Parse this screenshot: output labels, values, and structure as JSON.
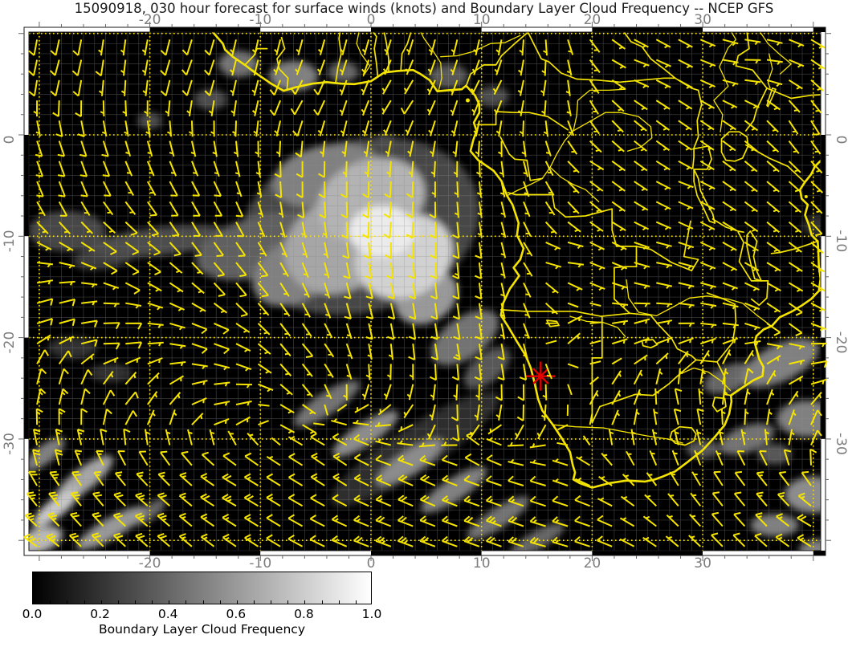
{
  "figure": {
    "title": "15090918, 030 hour forecast for surface winds (knots) and Boundary Layer Cloud Frequency -- NCEP GFS"
  },
  "map": {
    "extent": {
      "lon_min": -30.9,
      "lon_max": 40.7,
      "lat_min": -41.0,
      "lat_max": 10.1
    },
    "axes": {
      "top": [
        "-20",
        "-10",
        "0",
        "10",
        "20",
        "30"
      ],
      "bottom": [
        "-20",
        "-10",
        "0",
        "10",
        "20",
        "30"
      ],
      "left": [
        "0",
        "-10",
        "-20",
        "-30"
      ],
      "right": [
        "0",
        "-10",
        "-20",
        "-30"
      ]
    },
    "grid": {
      "major_deg": 10,
      "fine_deg": 1,
      "tick_deg": 2
    },
    "marker": {
      "shape": "asterisk",
      "lon": 15.35,
      "lat": -23.8,
      "color": "#e60000"
    },
    "colors": {
      "background": "#000000",
      "graticule": "#8c8c8c",
      "grid_major": "#ffe400",
      "geo": "#f5e400",
      "barb": "#f5e400",
      "frame_light": "#ffffff",
      "frame_dark": "#000000",
      "axis_text": "#7d7d7d",
      "title_text": "#1a1a1a"
    }
  },
  "colorbar": {
    "min": 0.0,
    "max": 1.0,
    "tick_labels": [
      "0.0",
      "0.2",
      "0.4",
      "0.6",
      "0.8",
      "1.0"
    ],
    "minor_tick_step": 0.05,
    "label": "Boundary Layer Cloud Frequency",
    "colors": [
      "#000000",
      "#ffffff"
    ]
  },
  "chart_data": {
    "type": "heatmap",
    "title": "15090918, 030 hour forecast for surface winds (knots) and Boundary Layer Cloud Frequency -- NCEP GFS",
    "value_field": "Boundary Layer Cloud Frequency",
    "value_range": [
      0,
      1
    ],
    "lon_range": [
      -30.9,
      40.7
    ],
    "lat_range": [
      -41.0,
      10.1
    ],
    "cloud_blobs": [
      [
        -1,
        -9,
        11,
        8.5,
        -15,
        0.28
      ],
      [
        -10,
        -11,
        6,
        3,
        -15,
        0.38
      ],
      [
        -4,
        -4,
        5,
        3,
        -12,
        0.5
      ],
      [
        0,
        -6.5,
        5,
        4,
        -20,
        0.7
      ],
      [
        -3,
        -11,
        5,
        4.5,
        -25,
        0.65
      ],
      [
        3,
        -12,
        4.5,
        4,
        -25,
        0.82
      ],
      [
        1,
        -9.5,
        3,
        2.5,
        0,
        0.92
      ],
      [
        -7,
        -13.5,
        4,
        3,
        -30,
        0.5
      ],
      [
        5,
        -16,
        3,
        2.5,
        -30,
        0.6
      ],
      [
        8.5,
        -20,
        3.5,
        2,
        -35,
        0.45
      ],
      [
        10.5,
        -23,
        2.5,
        1.4,
        -40,
        0.35
      ],
      [
        -19,
        -10.5,
        6.5,
        1.4,
        -6,
        0.3
      ],
      [
        -27.5,
        -9.5,
        3.5,
        2,
        0,
        0.28
      ],
      [
        -24,
        -12,
        3,
        1.2,
        -10,
        0.24
      ],
      [
        -27,
        -21,
        2.2,
        1.1,
        0,
        0.2
      ],
      [
        -23.5,
        -23.5,
        1.9,
        0.9,
        0,
        0.2
      ],
      [
        4,
        -31,
        9,
        2.2,
        -33,
        0.18
      ],
      [
        -4,
        -26.5,
        3.5,
        1.1,
        -33,
        0.45
      ],
      [
        -0.5,
        -29.5,
        3.5,
        1.1,
        -33,
        0.55
      ],
      [
        3.5,
        -32.3,
        3.5,
        1.1,
        -33,
        0.55
      ],
      [
        7.5,
        -35,
        3.5,
        1.1,
        -33,
        0.5
      ],
      [
        11.5,
        -37.8,
        3.3,
        1,
        -33,
        0.45
      ],
      [
        15,
        -40,
        2.8,
        0.9,
        -30,
        0.4
      ],
      [
        -29.5,
        -31.5,
        2.2,
        0.9,
        -38,
        0.5
      ],
      [
        -26,
        -34,
        3.3,
        1.1,
        -38,
        0.65
      ],
      [
        -28.5,
        -36.8,
        2.6,
        0.9,
        -38,
        0.78
      ],
      [
        -23.5,
        -38.8,
        3.6,
        1,
        -30,
        0.6
      ],
      [
        -30,
        -40,
        2.2,
        1.2,
        -20,
        0.72
      ],
      [
        -20,
        -37.2,
        1.8,
        0.7,
        -38,
        0.4
      ],
      [
        -12,
        7,
        1.8,
        1.3,
        0,
        0.45
      ],
      [
        -7,
        5.8,
        2.2,
        1.5,
        0,
        0.5
      ],
      [
        -2.5,
        6.2,
        1.4,
        1,
        0,
        0.4
      ],
      [
        7,
        5.8,
        1.8,
        1.2,
        0,
        0.35
      ],
      [
        11,
        3.8,
        1.5,
        1,
        0,
        0.3
      ],
      [
        -14.5,
        3.5,
        1.5,
        1,
        0,
        0.3
      ],
      [
        -20,
        1.4,
        1.1,
        0.8,
        0,
        0.3
      ],
      [
        1.3,
        -0.6,
        0.9,
        0.7,
        0,
        0.3
      ],
      [
        9.5,
        -18.5,
        1.2,
        0.8,
        0,
        0.3
      ],
      [
        37,
        -22.5,
        3.8,
        1.8,
        -25,
        0.5
      ],
      [
        32.5,
        -24,
        2.5,
        1.3,
        -20,
        0.4
      ],
      [
        34,
        -30,
        2.6,
        1.3,
        -20,
        0.45
      ],
      [
        39.5,
        -28,
        2.8,
        1.8,
        0,
        0.5
      ],
      [
        30,
        -31,
        1.5,
        0.9,
        0,
        0.35
      ],
      [
        36.5,
        -31.5,
        1.5,
        1,
        0,
        0.35
      ],
      [
        40,
        -35.5,
        2.6,
        1.8,
        0,
        0.55
      ],
      [
        36.5,
        -38.5,
        2.2,
        1.1,
        0,
        0.5
      ],
      [
        40.5,
        -41,
        1.8,
        1.1,
        0,
        0.5
      ],
      [
        40.5,
        -9,
        1.5,
        1.1,
        0,
        0.2
      ]
    ],
    "wind": {
      "units": "knots",
      "barb_grid_deg": 2,
      "control_points": [
        [
          -28,
          7,
          195,
          10
        ],
        [
          -16,
          7,
          200,
          10
        ],
        [
          -6,
          4,
          210,
          9
        ],
        [
          3,
          4,
          215,
          8
        ],
        [
          11,
          5,
          210,
          6
        ],
        [
          -28,
          -3,
          160,
          12
        ],
        [
          -16,
          -7,
          150,
          12
        ],
        [
          -6,
          -4,
          180,
          10
        ],
        [
          2,
          -8,
          185,
          12
        ],
        [
          8,
          -13,
          175,
          15
        ],
        [
          -12,
          -14,
          140,
          12
        ],
        [
          -22,
          -12,
          125,
          11
        ],
        [
          0,
          -16,
          165,
          13
        ],
        [
          7,
          -20,
          170,
          15
        ],
        [
          12,
          -22,
          170,
          14
        ],
        [
          -6,
          -21,
          140,
          10
        ],
        [
          -15,
          -20,
          110,
          11
        ],
        [
          -24,
          -20,
          90,
          12
        ],
        [
          -29,
          -18,
          75,
          10
        ],
        [
          -29,
          -26,
          15,
          15
        ],
        [
          -29,
          -32,
          350,
          20
        ],
        [
          -22,
          -27,
          40,
          10
        ],
        [
          -14,
          -27,
          80,
          8
        ],
        [
          -7,
          -28,
          120,
          6
        ],
        [
          14,
          -26,
          180,
          10
        ],
        [
          8,
          -28,
          170,
          12
        ],
        [
          10,
          -31,
          310,
          12
        ],
        [
          -28,
          -36,
          320,
          28
        ],
        [
          -30,
          -41,
          305,
          32
        ],
        [
          -20,
          -38,
          310,
          28
        ],
        [
          -12,
          -36,
          300,
          24
        ],
        [
          -3,
          -33,
          305,
          18
        ],
        [
          5,
          -35,
          295,
          24
        ],
        [
          12,
          -39,
          290,
          24
        ],
        [
          3,
          -41,
          290,
          28
        ],
        [
          16,
          -41,
          285,
          20
        ],
        [
          15,
          5,
          190,
          4
        ],
        [
          24,
          7,
          110,
          6
        ],
        [
          34,
          7,
          90,
          7
        ],
        [
          20,
          -3,
          120,
          3
        ],
        [
          28,
          -5,
          110,
          4
        ],
        [
          35,
          -3,
          130,
          6
        ],
        [
          17,
          -12,
          90,
          4
        ],
        [
          26,
          -12,
          100,
          5
        ],
        [
          33,
          -12,
          120,
          6
        ],
        [
          17,
          -20,
          40,
          5
        ],
        [
          24,
          -20,
          70,
          5
        ],
        [
          30,
          -17,
          100,
          6
        ],
        [
          22,
          -27,
          30,
          7
        ],
        [
          28,
          -28,
          345,
          12
        ],
        [
          33,
          -25,
          10,
          9
        ],
        [
          37,
          -18,
          130,
          10
        ],
        [
          40,
          -23,
          80,
          9
        ],
        [
          40,
          -30,
          25,
          10
        ],
        [
          36,
          -36,
          320,
          16
        ],
        [
          40,
          -39,
          300,
          20
        ],
        [
          41,
          -8,
          140,
          9
        ],
        [
          39,
          1,
          150,
          8
        ],
        [
          36,
          -8,
          130,
          7
        ]
      ]
    }
  }
}
